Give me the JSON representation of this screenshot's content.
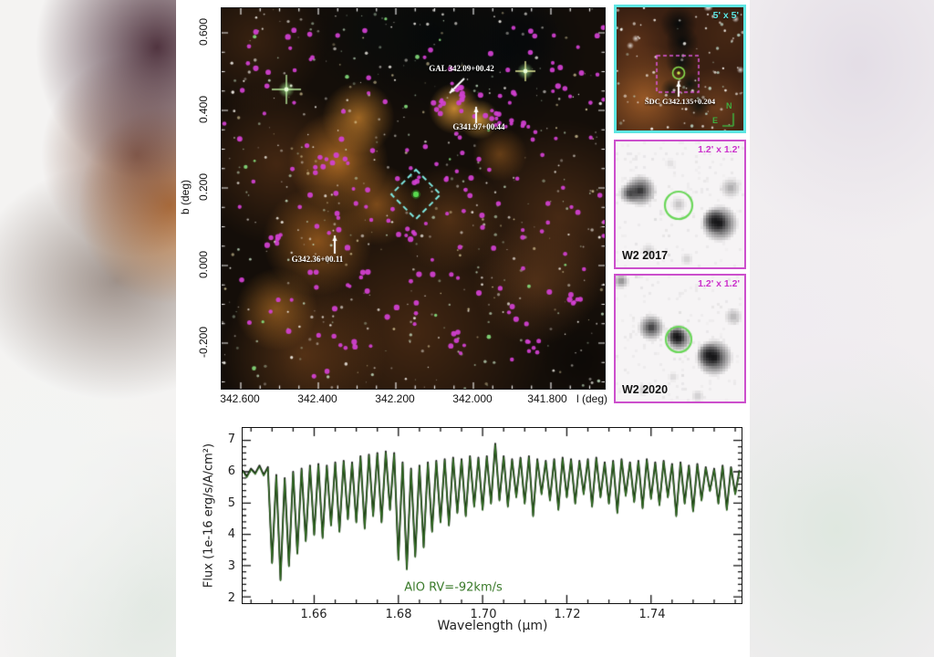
{
  "figure": {
    "main_panel": {
      "xlabel": "l (deg)",
      "ylabel": "b (deg)",
      "x_ticks": [
        "342.600",
        "342.400",
        "342.200",
        "342.000",
        "341.800"
      ],
      "y_ticks": [
        "0.600",
        "0.400",
        "0.200",
        "0.000",
        "-0.200"
      ],
      "annotations": [
        {
          "label": "GAL 342.09+00.42"
        },
        {
          "label": "G341.97+00.44"
        },
        {
          "label": "G342.36+00.11"
        }
      ],
      "marker_color": "#d341d3",
      "roi_box_color": "#7fe9e2"
    },
    "finder_inset": {
      "fov_label": "5' x 5'",
      "target_label": "SDC G342.135+0.204",
      "compass_north": "N",
      "compass_east": "E",
      "border_color": "#5ee6e2",
      "target_box_color": "#e058e0",
      "target_circle_color": "#8ae04e"
    },
    "w2_2017_inset": {
      "fov_label": "1.2' x 1.2'",
      "epoch_label": "W2 2017",
      "border_color": "#cc4fcc",
      "target_circle_color": "#6bd75a"
    },
    "w2_2020_inset": {
      "fov_label": "1.2' x 1.2'",
      "epoch_label": "W2 2020",
      "border_color": "#cc4fcc",
      "target_circle_color": "#6bd75a"
    },
    "spectrum": {
      "ylabel": "Flux (1e-16 erg/s/A/cm²)",
      "xlabel": "Wavelength (μm)",
      "annotation": "AlO RV=-92km/s",
      "x_tick_labels": [
        "1.66",
        "1.68",
        "1.70",
        "1.72",
        "1.74"
      ],
      "y_tick_labels": [
        "2",
        "3",
        "4",
        "5",
        "6",
        "7"
      ],
      "line_color_observed": "#111111",
      "line_color_model": "#2f6b20"
    }
  },
  "chart_data": {
    "type": "line",
    "title": "",
    "xlabel": "Wavelength (μm)",
    "ylabel": "Flux (1e-16 erg/s/A/cm²)",
    "xlim": [
      1.643,
      1.7615
    ],
    "ylim": [
      1.8,
      7.4
    ],
    "x_ticks": [
      1.66,
      1.68,
      1.7,
      1.72,
      1.74
    ],
    "y_ticks": [
      2,
      3,
      4,
      5,
      6,
      7
    ],
    "grid": false,
    "legend_position": "none",
    "annotation": "AlO RV=-92km/s",
    "x_start": 1.643,
    "x_step": 0.001,
    "series": [
      {
        "name": "observed spectrum",
        "color": "#111111"
      },
      {
        "name": "AlO model RV=-92 km/s",
        "color": "#2f6b20"
      }
    ],
    "flux": [
      6.05,
      5.85,
      6.1,
      5.95,
      6.2,
      5.9,
      6.15,
      3.1,
      5.9,
      2.55,
      5.8,
      3.0,
      6.0,
      3.4,
      6.1,
      3.8,
      6.2,
      4.0,
      6.25,
      3.9,
      6.2,
      4.3,
      6.3,
      4.1,
      6.35,
      4.5,
      6.3,
      4.4,
      6.5,
      4.2,
      6.55,
      4.6,
      6.6,
      4.4,
      6.65,
      4.8,
      6.6,
      3.2,
      6.3,
      2.9,
      6.1,
      3.3,
      6.2,
      3.6,
      6.3,
      4.1,
      6.35,
      4.4,
      6.4,
      4.3,
      6.45,
      4.7,
      6.4,
      4.6,
      6.5,
      4.9,
      6.45,
      4.8,
      6.5,
      5.0,
      6.9,
      5.1,
      6.5,
      4.9,
      6.4,
      5.2,
      6.45,
      5.0,
      6.5,
      4.6,
      6.4,
      5.3,
      6.35,
      5.1,
      6.4,
      4.8,
      6.45,
      5.2,
      6.4,
      5.0,
      6.35,
      5.3,
      6.4,
      4.9,
      6.45,
      5.2,
      6.3,
      5.0,
      6.35,
      4.7,
      6.4,
      5.25,
      6.3,
      5.05,
      6.35,
      4.85,
      6.4,
      5.15,
      6.3,
      4.95,
      6.35,
      5.2,
      6.25,
      4.6,
      6.3,
      5.0,
      6.2,
      4.75,
      6.25,
      5.1,
      6.15,
      5.4,
      6.1,
      5.0,
      6.2,
      4.8,
      6.15,
      5.3,
      6.05
    ]
  }
}
